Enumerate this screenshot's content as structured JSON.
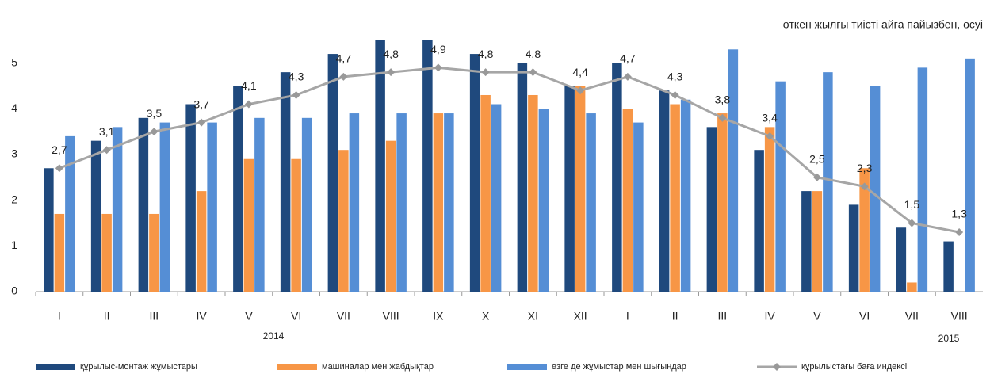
{
  "chart_data": {
    "type": "bar",
    "subtitle": "өткен жылғы тиісті айға пайызбен, өсуі",
    "categories": [
      "I",
      "II",
      "III",
      "IV",
      "V",
      "VI",
      "VII",
      "VIII",
      "IX",
      "X",
      "XI",
      "XII",
      "I",
      "II",
      "III",
      "IV",
      "V",
      "VI",
      "VII",
      "VIII"
    ],
    "annotations": [
      "2014",
      "2015"
    ],
    "series": [
      {
        "name": "құрылыс-монтаж жұмыстары",
        "type": "bar",
        "color": "#1f497d",
        "values": [
          2.7,
          3.3,
          3.8,
          4.1,
          4.5,
          4.8,
          5.2,
          5.5,
          5.5,
          5.2,
          5.0,
          4.5,
          5.0,
          4.4,
          3.6,
          3.1,
          2.2,
          1.9,
          1.4,
          1.1
        ]
      },
      {
        "name": "машиналар мен жабдықтар",
        "type": "bar",
        "color": "#f79646",
        "values": [
          1.7,
          1.7,
          1.7,
          2.2,
          2.9,
          2.9,
          3.1,
          3.3,
          3.9,
          4.3,
          4.3,
          4.5,
          4.0,
          4.1,
          3.9,
          3.6,
          2.2,
          2.7,
          0.2,
          null
        ]
      },
      {
        "name": "өзге де жұмыстар мен шығындар",
        "type": "bar",
        "color": "#558ed5",
        "values": [
          3.4,
          3.6,
          3.7,
          3.7,
          3.8,
          3.8,
          3.9,
          3.9,
          3.9,
          4.1,
          4.0,
          3.9,
          3.7,
          4.2,
          5.3,
          4.6,
          4.8,
          4.5,
          4.9,
          5.1
        ]
      },
      {
        "name": "құрылыстағы баға индексі",
        "type": "line",
        "color": "#a6a6a6",
        "values": [
          2.7,
          3.1,
          3.5,
          3.7,
          4.1,
          4.3,
          4.7,
          4.8,
          4.9,
          4.8,
          4.8,
          4.4,
          4.7,
          4.3,
          3.8,
          3.4,
          2.5,
          2.3,
          1.5,
          1.3
        ],
        "value_labels": [
          "2,7",
          "3,1",
          "3,5",
          "3,7",
          "4,1",
          "4,3",
          "4,7",
          "4,8",
          "4,9",
          "4,8",
          "4,8",
          "4,4",
          "4,7",
          "4,3",
          "3,8",
          "3,4",
          "2,5",
          "2,3",
          "1,5",
          "1,3"
        ]
      }
    ],
    "ylim": [
      0,
      5.6
    ],
    "yticks": [
      0,
      1,
      2,
      3,
      4,
      5
    ],
    "grid": false
  }
}
